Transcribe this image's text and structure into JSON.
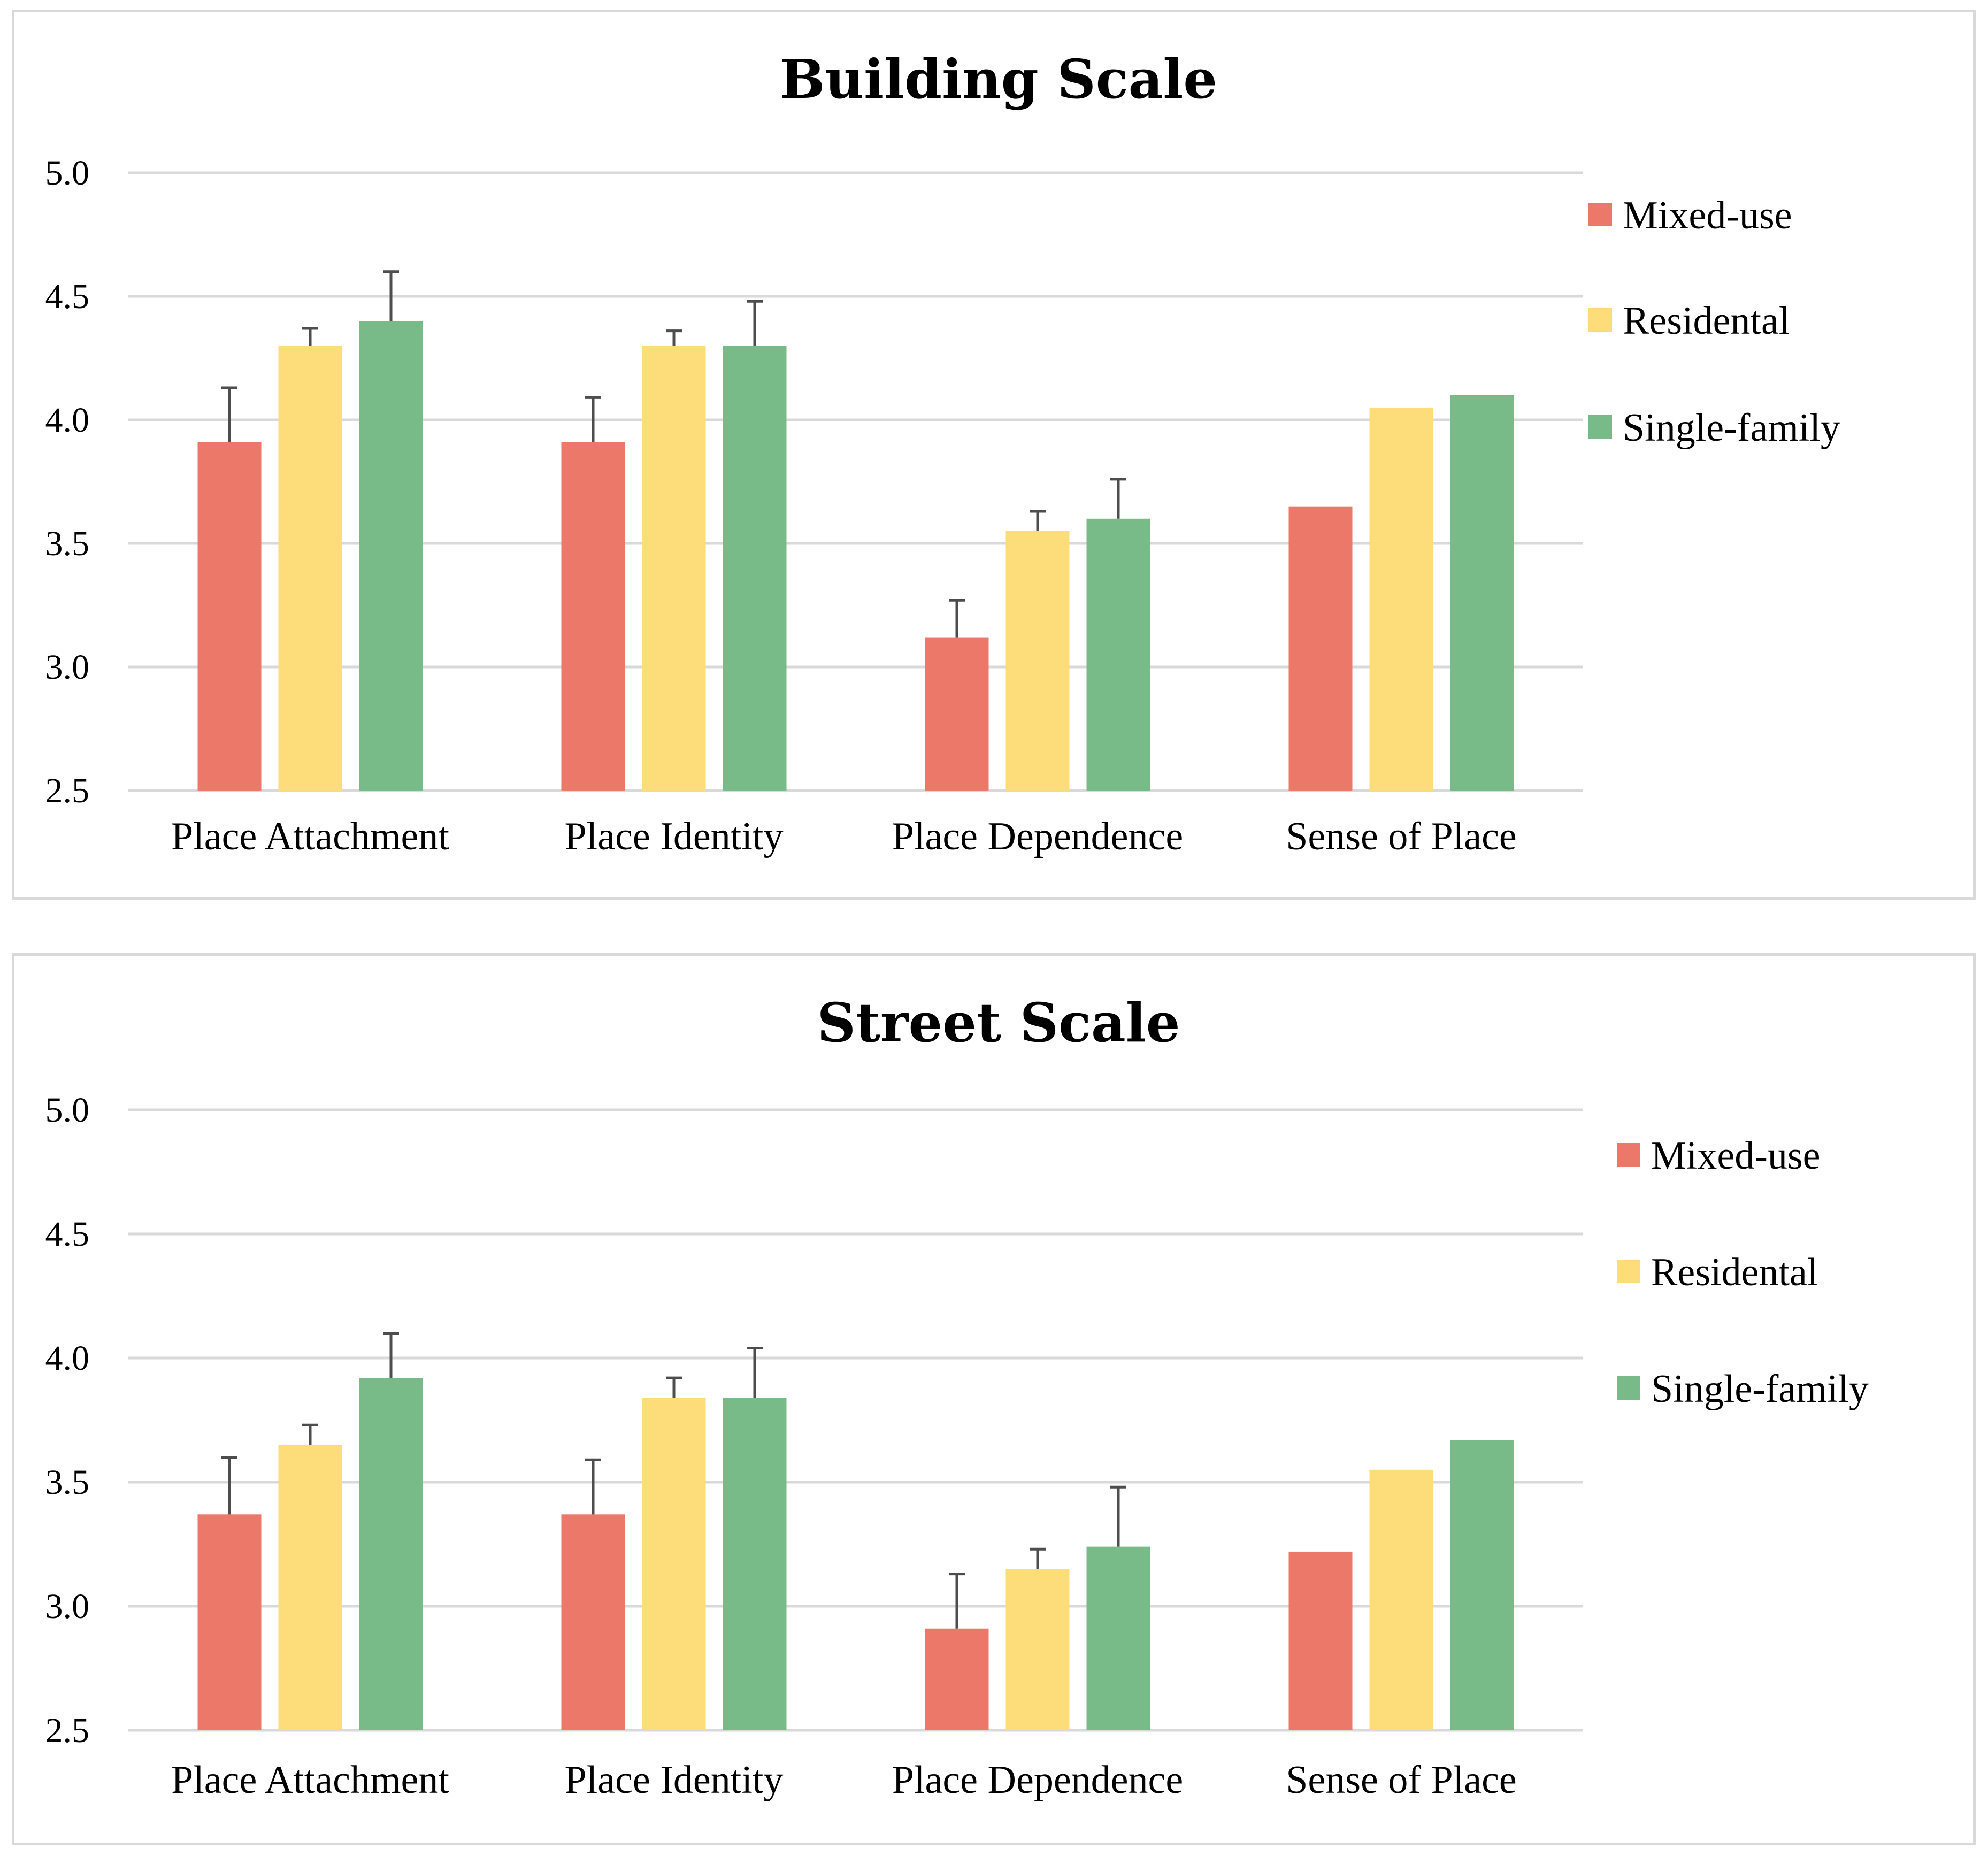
{
  "colors": {
    "Mixed-use": "#ec7869",
    "Residental": "#fddd7a",
    "Single-family": "#78ba88",
    "grid": "#d9d9d9",
    "error_bar": "#4d4d4d"
  },
  "chart_data": [
    {
      "type": "bar",
      "title": "Building Scale",
      "categories": [
        "Place Attachment",
        "Place Identity",
        "Place Dependence",
        "Sense of Place"
      ],
      "ylim": [
        2.5,
        5.0
      ],
      "yticks": [
        "2.5",
        "3.0",
        "3.5",
        "4.0",
        "4.5",
        "5.0"
      ],
      "grid": true,
      "legend_position": "right",
      "series": [
        {
          "name": "Mixed-use",
          "values": [
            3.91,
            3.91,
            3.12,
            3.65
          ],
          "errors": [
            0.22,
            0.18,
            0.15,
            null
          ]
        },
        {
          "name": "Residental",
          "values": [
            4.3,
            4.3,
            3.55,
            4.05
          ],
          "errors": [
            0.07,
            0.06,
            0.08,
            null
          ]
        },
        {
          "name": "Single-family",
          "values": [
            4.4,
            4.3,
            3.6,
            4.1
          ],
          "errors": [
            0.2,
            0.18,
            0.16,
            null
          ]
        }
      ]
    },
    {
      "type": "bar",
      "title": "Street Scale",
      "categories": [
        "Place Attachment",
        "Place Identity",
        "Place Dependence",
        "Sense of Place"
      ],
      "ylim": [
        2.5,
        5.0
      ],
      "yticks": [
        "2.5",
        "3.0",
        "3.5",
        "4.0",
        "4.5",
        "5.0"
      ],
      "grid": true,
      "legend_position": "right",
      "series": [
        {
          "name": "Mixed-use",
          "values": [
            3.37,
            3.37,
            2.91,
            3.22
          ],
          "errors": [
            0.23,
            0.22,
            0.22,
            null
          ]
        },
        {
          "name": "Residental",
          "values": [
            3.65,
            3.84,
            3.15,
            3.55
          ],
          "errors": [
            0.08,
            0.08,
            0.08,
            null
          ]
        },
        {
          "name": "Single-family",
          "values": [
            3.92,
            3.84,
            3.24,
            3.67
          ],
          "errors": [
            0.18,
            0.2,
            0.24,
            null
          ]
        }
      ]
    }
  ]
}
